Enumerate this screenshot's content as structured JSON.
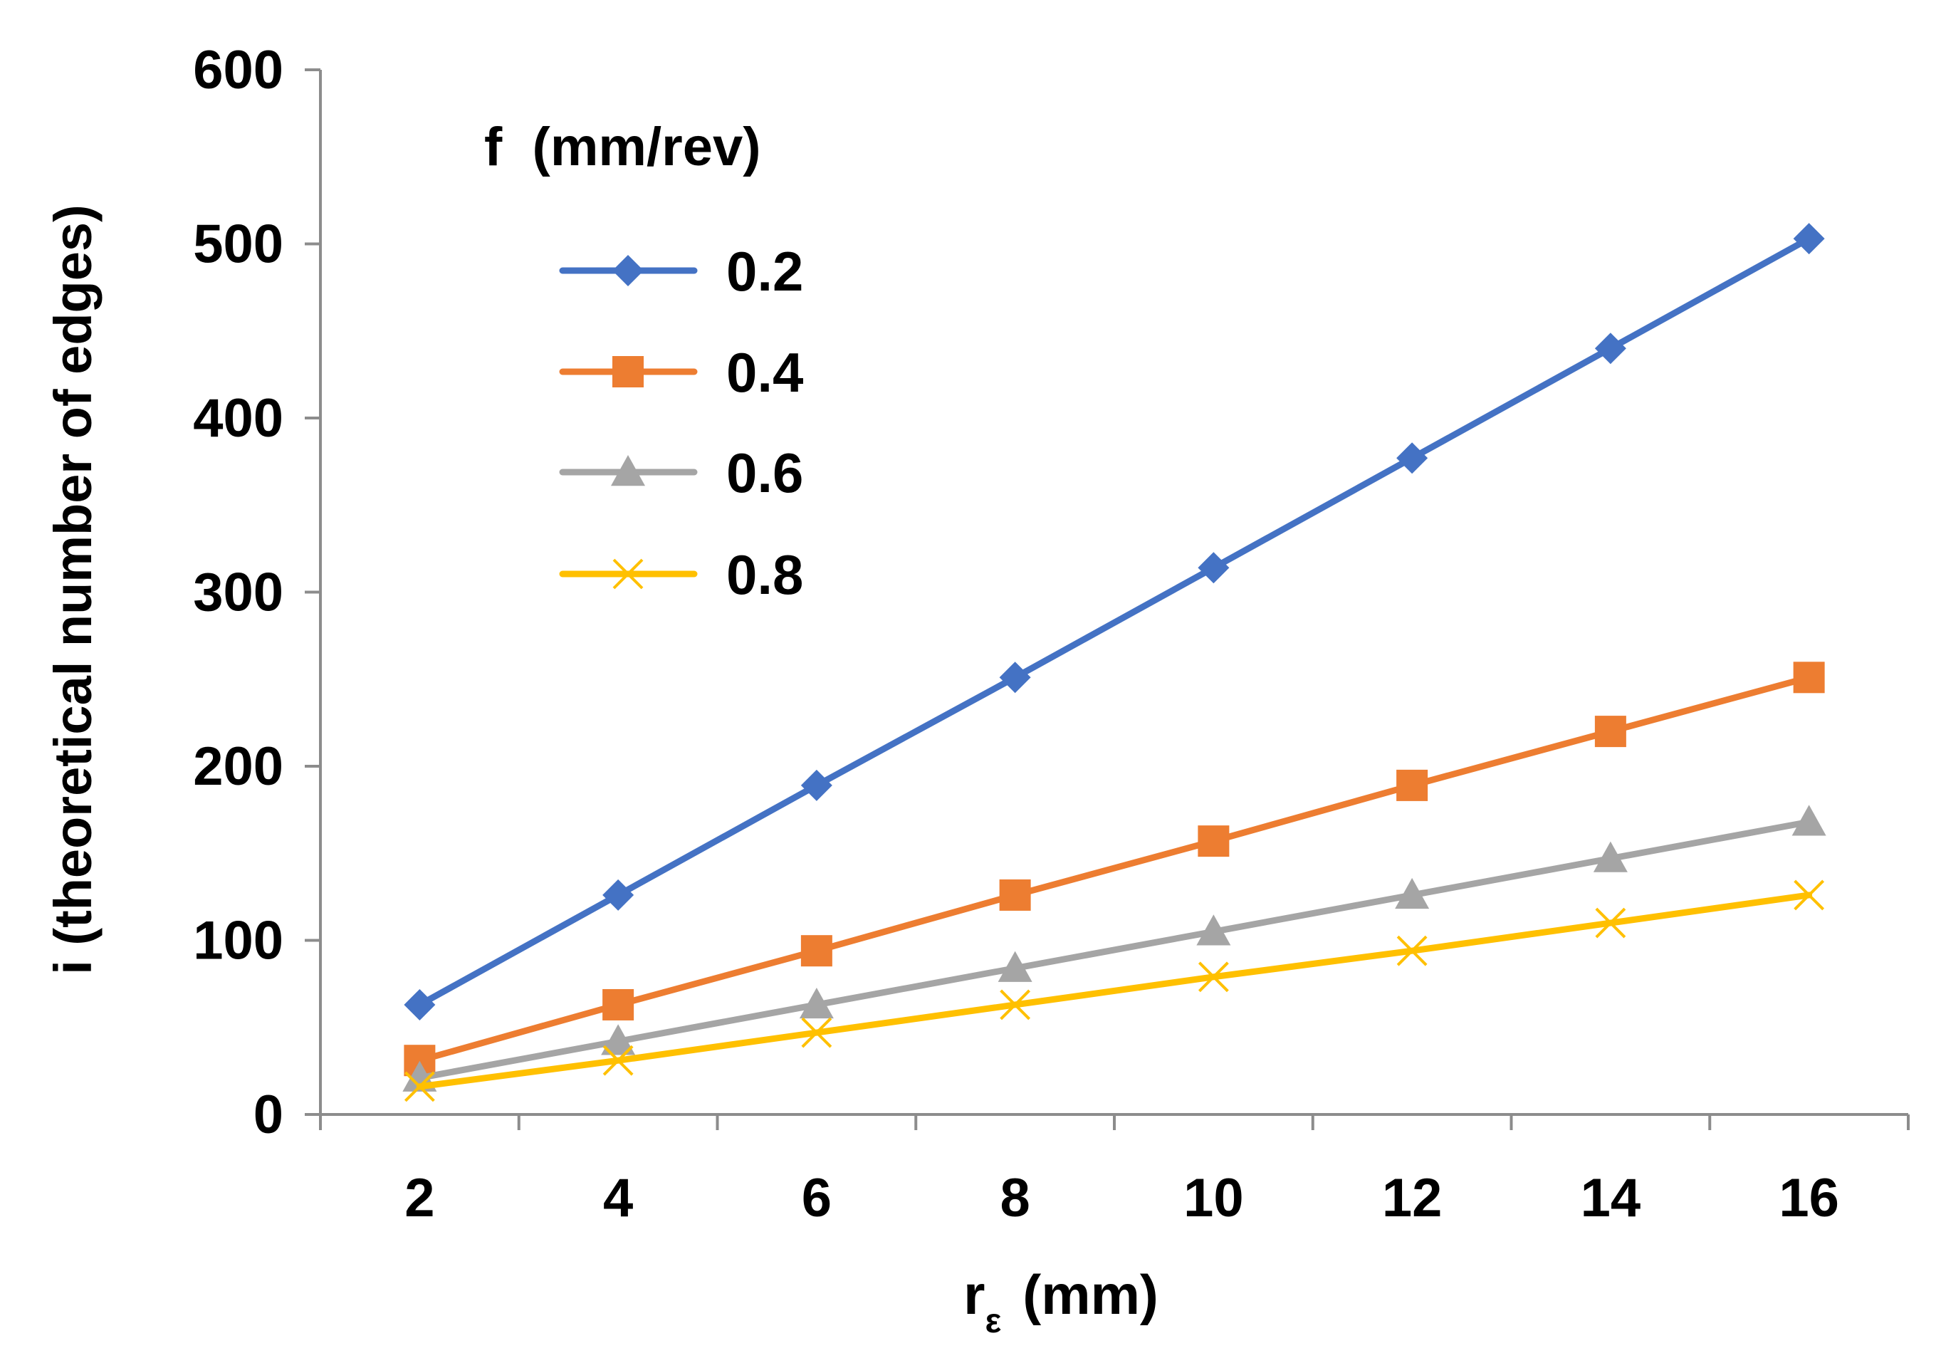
{
  "chart_data": {
    "type": "line",
    "title": "",
    "xlabel": "r",
    "xlabel_subscript": "ε",
    "xlabel_unit": "(mm)",
    "ylabel": "i (theoretical number of edges)",
    "x": [
      2,
      4,
      6,
      8,
      10,
      12,
      14,
      16
    ],
    "ylim": [
      0,
      600
    ],
    "yticks": [
      0,
      100,
      200,
      300,
      400,
      500,
      600
    ],
    "grid": false,
    "legend": {
      "title": "f  (mm/rev)",
      "position": "top-left"
    },
    "series": [
      {
        "name": "0.2",
        "color": "#4472C4",
        "marker": "diamond",
        "values": [
          63,
          126,
          189,
          251,
          314,
          377,
          440,
          503
        ]
      },
      {
        "name": "0.4",
        "color": "#ED7D31",
        "marker": "square",
        "values": [
          31,
          63,
          94,
          126,
          157,
          189,
          220,
          251
        ]
      },
      {
        "name": "0.6",
        "color": "#A5A5A5",
        "marker": "triangle",
        "values": [
          21,
          42,
          63,
          84,
          105,
          126,
          147,
          168
        ]
      },
      {
        "name": "0.8",
        "color": "#FFC000",
        "marker": "x",
        "values": [
          16,
          31,
          47,
          63,
          79,
          94,
          110,
          126
        ]
      }
    ]
  }
}
